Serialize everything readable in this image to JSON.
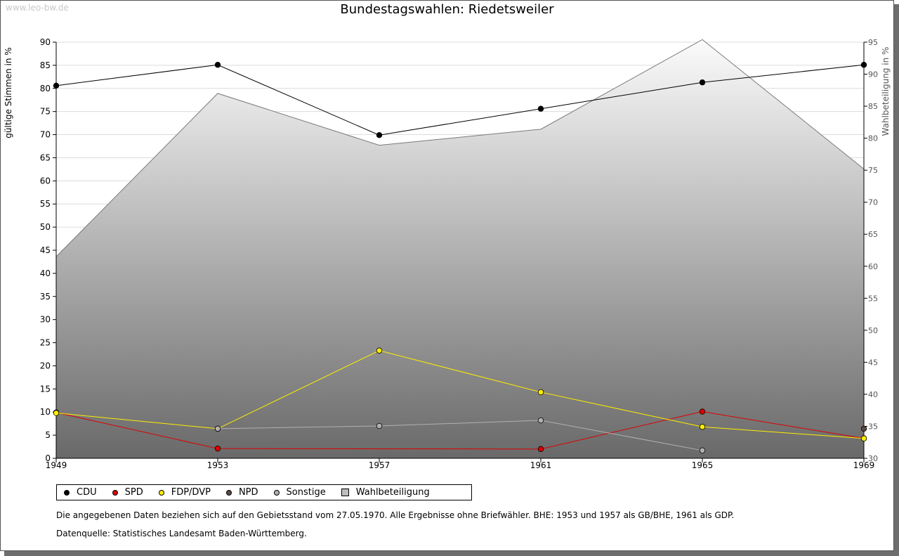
{
  "watermark": "www.leo-bw.de",
  "chart_data": {
    "type": "line",
    "title": "Bundestagswahlen: Riedetsweiler",
    "ylabel": "gültige Stimmen in %",
    "y2label": "Wahlbeteiligung in %",
    "categories": [
      "1949",
      "1953",
      "1957",
      "1961",
      "1965",
      "1969"
    ],
    "ylim": [
      0,
      90
    ],
    "y2lim": [
      30,
      95
    ],
    "yticks": [
      0,
      5,
      10,
      15,
      20,
      25,
      30,
      35,
      40,
      45,
      50,
      55,
      60,
      65,
      70,
      75,
      80,
      85,
      90
    ],
    "y2ticks": [
      30,
      35,
      40,
      45,
      50,
      55,
      60,
      65,
      70,
      75,
      80,
      85,
      90,
      95
    ],
    "grid": true,
    "legend_position": "bottom",
    "series": [
      {
        "name": "CDU",
        "color": "#000000",
        "values": [
          80.6,
          85.1,
          69.9,
          75.6,
          81.3,
          85.1
        ]
      },
      {
        "name": "SPD",
        "color": "#dd0000",
        "values": [
          9.9,
          2.1,
          null,
          2.0,
          10.1,
          4.3
        ]
      },
      {
        "name": "FDP/DVP",
        "color": "#ffee00",
        "values": [
          9.8,
          6.4,
          23.3,
          14.3,
          6.8,
          4.3
        ]
      },
      {
        "name": "NPD",
        "color": "#5a4a42",
        "values": [
          null,
          null,
          null,
          null,
          null,
          6.4
        ]
      },
      {
        "name": "Sonstige",
        "color": "#b0b0b0",
        "values": [
          null,
          6.4,
          7.0,
          8.2,
          1.7,
          null
        ]
      }
    ],
    "area_series": {
      "name": "Wahlbeteiligung",
      "axis": "right",
      "values": [
        61.5,
        87.0,
        78.9,
        81.4,
        95.4,
        75.2
      ]
    }
  },
  "notes": [
    "Die angegebenen Daten beziehen sich auf den Gebietsstand vom 27.05.1970. Alle Ergebnisse ohne Briefwähler. BHE: 1953 und 1957 als GB/BHE, 1961 als GDP.",
    "Datenquelle: Statistisches Landesamt Baden-Württemberg."
  ]
}
